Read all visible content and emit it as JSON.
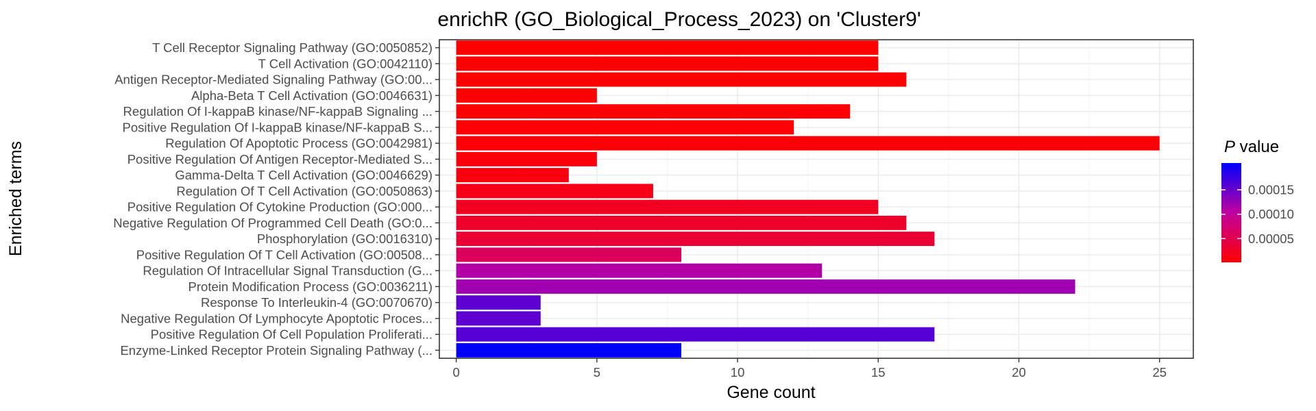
{
  "chart_data": {
    "type": "bar",
    "orientation": "horizontal",
    "title": "enrichR (GO_Biological_Process_2023) on 'Cluster9'",
    "xlabel": "Gene count",
    "ylabel": "Enriched terms",
    "xlim": [
      -0.6,
      26.2
    ],
    "xticks": [
      0,
      5,
      10,
      15,
      20,
      25
    ],
    "grid": true,
    "legend": {
      "title_italic": "P",
      "title_rest": " value",
      "placement": "right",
      "range": [
        1.2e-06,
        0.000205
      ],
      "ticks": [
        5e-05,
        0.0001,
        0.00015
      ],
      "tick_labels": [
        "0.00005",
        "0.00010",
        "0.00015"
      ],
      "color_low": "#ff0000",
      "color_high": "#0000ff"
    },
    "categories": [
      "T Cell Receptor Signaling Pathway (GO:0050852)",
      "T Cell Activation (GO:0042110)",
      "Antigen Receptor-Mediated Signaling Pathway (GO:00...",
      "Alpha-Beta T Cell Activation (GO:0046631)",
      "Regulation Of I-kappaB kinase/NF-kappaB Signaling ...",
      "Positive Regulation Of I-kappaB kinase/NF-kappaB S...",
      "Regulation Of Apoptotic Process (GO:0042981)",
      "Positive Regulation Of Antigen Receptor-Mediated S...",
      "Gamma-Delta T Cell Activation (GO:0046629)",
      "Regulation Of T Cell Activation (GO:0050863)",
      "Positive Regulation Of Cytokine Production (GO:000...",
      "Negative Regulation Of Programmed Cell Death (GO:0...",
      "Phosphorylation (GO:0016310)",
      "Positive Regulation Of T Cell Activation (GO:00508...",
      "Regulation Of Intracellular Signal Transduction (G...",
      "Protein Modification Process (GO:0036211)",
      "Response To Interleukin-4 (GO:0070670)",
      "Negative Regulation Of Lymphocyte Apoptotic Proces...",
      "Positive Regulation Of Cell Population Proliferati...",
      "Enzyme-Linked Receptor Protein Signaling Pathway (..."
    ],
    "values": [
      15,
      15,
      16,
      5,
      14,
      12,
      25,
      5,
      4,
      7,
      15,
      16,
      17,
      8,
      13,
      22,
      3,
      3,
      17,
      8
    ],
    "p_values": [
      1.2e-06,
      1.4e-06,
      1.8e-06,
      2.5e-06,
      3e-06,
      3.5e-06,
      5e-06,
      8e-06,
      1.1e-05,
      1.6e-05,
      2.2e-05,
      2.8e-05,
      3.5e-05,
      6e-05,
      0.00011,
      0.00012,
      0.000155,
      0.000155,
      0.00016,
      0.000205
    ]
  }
}
